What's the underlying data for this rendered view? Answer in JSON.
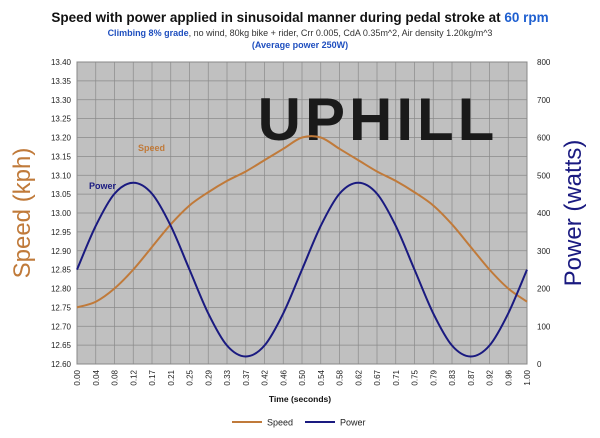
{
  "title": {
    "main_prefix": "Speed with power applied in sinusoidal manner during pedal stroke at ",
    "main_rpm": "60 rpm",
    "sub_prefix": "Climbing 8% grade",
    "sub_rest": ", no wind, 80kg bike + rider, Crr 0.005, CdA 0.35m^2, Air density 1.20kg/m^3",
    "avg_power": "(Average power 250W)"
  },
  "watermark": "UPHILL",
  "colors": {
    "speed": "#c07a3a",
    "power": "#1a1a80",
    "rpm": "#1e5fd0",
    "subtitle_blue": "#1f4fbf",
    "plot_bg": "#c0c0c0",
    "grid": "#8a8a8a"
  },
  "chart_data": {
    "type": "line",
    "xlabel": "Time (seconds)",
    "y_left_label": "Speed (kph)",
    "y_right_label": "Power (watts)",
    "x_ticks": [
      "0.00",
      "0.04",
      "0.08",
      "0.12",
      "0.17",
      "0.21",
      "0.25",
      "0.29",
      "0.33",
      "0.37",
      "0.42",
      "0.46",
      "0.50",
      "0.54",
      "0.58",
      "0.62",
      "0.67",
      "0.71",
      "0.75",
      "0.79",
      "0.83",
      "0.87",
      "0.92",
      "0.96",
      "1.00"
    ],
    "x_range": [
      0,
      1
    ],
    "y_left_range": [
      12.6,
      13.4
    ],
    "y_left_ticks": [
      "12.60",
      "12.65",
      "12.70",
      "12.75",
      "12.80",
      "12.85",
      "12.90",
      "12.95",
      "13.00",
      "13.05",
      "13.10",
      "13.15",
      "13.20",
      "13.25",
      "13.30",
      "13.35",
      "13.40"
    ],
    "y_right_range": [
      0,
      800
    ],
    "y_right_ticks": [
      "0",
      "100",
      "200",
      "300",
      "400",
      "500",
      "600",
      "700",
      "800"
    ],
    "grid": true,
    "legend_position": "bottom",
    "series": [
      {
        "name": "Speed",
        "axis": "left",
        "annotation": "Speed",
        "x": [
          0.0,
          0.0417,
          0.0833,
          0.125,
          0.1667,
          0.2083,
          0.25,
          0.2917,
          0.3333,
          0.375,
          0.4167,
          0.4583,
          0.5,
          0.5417,
          0.5833,
          0.625,
          0.6667,
          0.7083,
          0.75,
          0.7917,
          0.8333,
          0.875,
          0.9167,
          0.9583,
          1.0
        ],
        "values": [
          12.75,
          12.765,
          12.8,
          12.85,
          12.91,
          12.97,
          13.02,
          13.055,
          13.085,
          13.11,
          13.14,
          13.17,
          13.2,
          13.2,
          13.17,
          13.14,
          13.11,
          13.085,
          13.055,
          13.02,
          12.97,
          12.91,
          12.85,
          12.8,
          12.765
        ]
      },
      {
        "name": "Power",
        "axis": "right",
        "annotation": "Power",
        "x": [
          0.0,
          0.0417,
          0.0833,
          0.125,
          0.1667,
          0.2083,
          0.25,
          0.2917,
          0.3333,
          0.375,
          0.4167,
          0.4583,
          0.5,
          0.5417,
          0.5833,
          0.625,
          0.6667,
          0.7083,
          0.75,
          0.7917,
          0.8333,
          0.875,
          0.9167,
          0.9583,
          1.0
        ],
        "values": [
          250,
          366,
          451,
          480,
          451,
          366,
          250,
          134,
          49,
          20,
          49,
          134,
          250,
          366,
          451,
          480,
          451,
          366,
          250,
          134,
          49,
          20,
          49,
          134,
          250
        ]
      }
    ]
  }
}
